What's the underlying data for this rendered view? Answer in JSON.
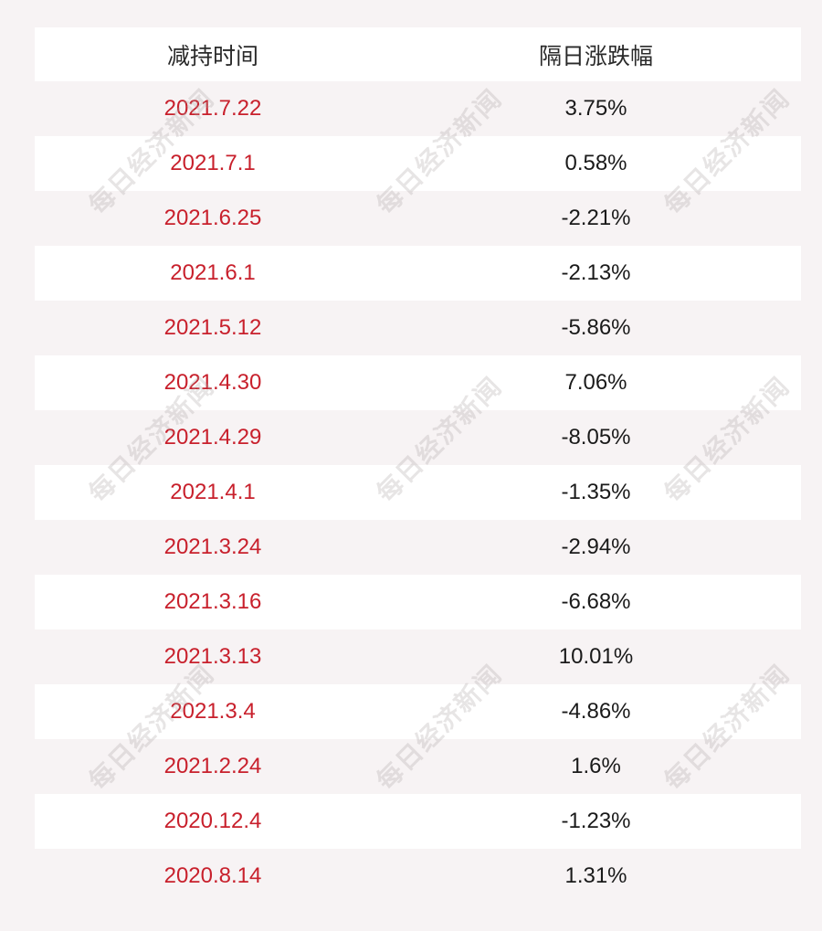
{
  "table": {
    "headers": [
      "减持时间",
      "隔日涨跌幅"
    ],
    "rows": [
      {
        "date": "2021.7.22",
        "change": "3.75%"
      },
      {
        "date": "2021.7.1",
        "change": "0.58%"
      },
      {
        "date": "2021.6.25",
        "change": "-2.21%"
      },
      {
        "date": "2021.6.1",
        "change": "-2.13%"
      },
      {
        "date": "2021.5.12",
        "change": "-5.86%"
      },
      {
        "date": "2021.4.30",
        "change": "7.06%"
      },
      {
        "date": "2021.4.29",
        "change": "-8.05%"
      },
      {
        "date": "2021.4.1",
        "change": "-1.35%"
      },
      {
        "date": "2021.3.24",
        "change": "-2.94%"
      },
      {
        "date": "2021.3.16",
        "change": "-6.68%"
      },
      {
        "date": "2021.3.13",
        "change": "10.01%"
      },
      {
        "date": "2021.3.4",
        "change": "-4.86%"
      },
      {
        "date": "2021.2.24",
        "change": "1.6%"
      },
      {
        "date": "2020.12.4",
        "change": "-1.23%"
      },
      {
        "date": "2020.8.14",
        "change": "1.31%"
      }
    ]
  },
  "watermark": {
    "text": "每日经济新闻"
  },
  "colors": {
    "background": "#f7f3f4",
    "row_white": "#ffffff",
    "date_text": "#c8202c",
    "value_text": "#1a1a1a"
  }
}
